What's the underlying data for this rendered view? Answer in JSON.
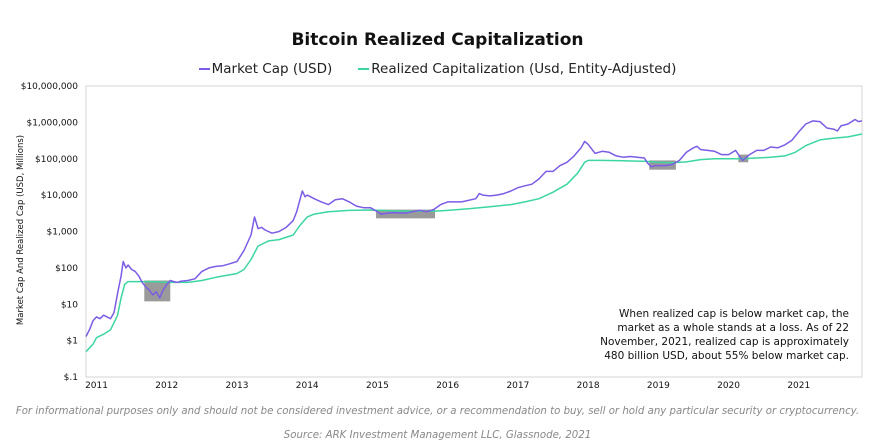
{
  "chart_data": {
    "type": "line",
    "title": "Bitcoin Realized Capitalization",
    "ylabel": "Market Cap And Realized Cap (USD, Millions)",
    "xlabel": "",
    "yscale": "log",
    "ylim": [
      0.1,
      10000000
    ],
    "xlim": [
      2010.85,
      2021.9
    ],
    "y_tick_labels": [
      {
        "value": 0.1,
        "label": "$.1"
      },
      {
        "value": 1,
        "label": "$1"
      },
      {
        "value": 10,
        "label": "$10"
      },
      {
        "value": 100,
        "label": "$100"
      },
      {
        "value": 1000,
        "label": "$1,000"
      },
      {
        "value": 10000,
        "label": "$10,000"
      },
      {
        "value": 100000,
        "label": "$100,000"
      },
      {
        "value": 1000000,
        "label": "$1,000,000"
      },
      {
        "value": 10000000,
        "label": "$10,000,000"
      }
    ],
    "x_tick_labels": [
      {
        "value": 2011.0,
        "label": "2011"
      },
      {
        "value": 2012.0,
        "label": "2012"
      },
      {
        "value": 2013.0,
        "label": "2013"
      },
      {
        "value": 2014.0,
        "label": "2014"
      },
      {
        "value": 2015.0,
        "label": "2015"
      },
      {
        "value": 2016.0,
        "label": "2016"
      },
      {
        "value": 2017.0,
        "label": "2017"
      },
      {
        "value": 2018.0,
        "label": "2018"
      },
      {
        "value": 2019.0,
        "label": "2019"
      },
      {
        "value": 2020.0,
        "label": "2020"
      },
      {
        "value": 2021.0,
        "label": "2021"
      }
    ],
    "series": [
      {
        "name": "Market Cap (USD)",
        "color": "#7b5ce6",
        "points": [
          [
            2010.85,
            1.3
          ],
          [
            2010.9,
            2.0
          ],
          [
            2010.95,
            3.5
          ],
          [
            2011.0,
            4.5
          ],
          [
            2011.05,
            4.0
          ],
          [
            2011.1,
            5.0
          ],
          [
            2011.2,
            4.0
          ],
          [
            2011.25,
            6.0
          ],
          [
            2011.3,
            20
          ],
          [
            2011.35,
            60
          ],
          [
            2011.38,
            150
          ],
          [
            2011.42,
            100
          ],
          [
            2011.45,
            120
          ],
          [
            2011.5,
            90
          ],
          [
            2011.55,
            80
          ],
          [
            2011.6,
            60
          ],
          [
            2011.65,
            40
          ],
          [
            2011.7,
            30
          ],
          [
            2011.75,
            25
          ],
          [
            2011.8,
            18
          ],
          [
            2011.85,
            22
          ],
          [
            2011.9,
            15
          ],
          [
            2011.95,
            25
          ],
          [
            2012.0,
            35
          ],
          [
            2012.05,
            45
          ],
          [
            2012.1,
            42
          ],
          [
            2012.15,
            40
          ],
          [
            2012.2,
            43
          ],
          [
            2012.3,
            45
          ],
          [
            2012.4,
            50
          ],
          [
            2012.5,
            80
          ],
          [
            2012.6,
            100
          ],
          [
            2012.7,
            110
          ],
          [
            2012.8,
            115
          ],
          [
            2012.9,
            130
          ],
          [
            2013.0,
            150
          ],
          [
            2013.1,
            300
          ],
          [
            2013.2,
            800
          ],
          [
            2013.25,
            2500
          ],
          [
            2013.3,
            1200
          ],
          [
            2013.35,
            1300
          ],
          [
            2013.4,
            1100
          ],
          [
            2013.5,
            900
          ],
          [
            2013.6,
            1000
          ],
          [
            2013.7,
            1300
          ],
          [
            2013.8,
            2000
          ],
          [
            2013.85,
            3500
          ],
          [
            2013.9,
            8000
          ],
          [
            2013.93,
            13000
          ],
          [
            2013.97,
            9000
          ],
          [
            2014.0,
            10000
          ],
          [
            2014.1,
            8000
          ],
          [
            2014.2,
            6500
          ],
          [
            2014.3,
            5500
          ],
          [
            2014.4,
            7500
          ],
          [
            2014.5,
            8000
          ],
          [
            2014.6,
            6500
          ],
          [
            2014.7,
            5000
          ],
          [
            2014.8,
            4500
          ],
          [
            2014.9,
            4500
          ],
          [
            2015.0,
            3500
          ],
          [
            2015.05,
            3000
          ],
          [
            2015.2,
            3300
          ],
          [
            2015.4,
            3200
          ],
          [
            2015.5,
            3500
          ],
          [
            2015.6,
            3800
          ],
          [
            2015.7,
            3500
          ],
          [
            2015.8,
            4000
          ],
          [
            2015.9,
            5500
          ],
          [
            2016.0,
            6500
          ],
          [
            2016.2,
            6500
          ],
          [
            2016.4,
            8000
          ],
          [
            2016.45,
            11000
          ],
          [
            2016.5,
            10000
          ],
          [
            2016.6,
            9500
          ],
          [
            2016.7,
            10000
          ],
          [
            2016.8,
            11000
          ],
          [
            2016.9,
            13000
          ],
          [
            2017.0,
            16000
          ],
          [
            2017.1,
            18000
          ],
          [
            2017.2,
            20000
          ],
          [
            2017.3,
            28000
          ],
          [
            2017.4,
            45000
          ],
          [
            2017.5,
            45000
          ],
          [
            2017.6,
            65000
          ],
          [
            2017.7,
            80000
          ],
          [
            2017.8,
            120000
          ],
          [
            2017.9,
            200000
          ],
          [
            2017.95,
            300000
          ],
          [
            2018.0,
            250000
          ],
          [
            2018.1,
            140000
          ],
          [
            2018.2,
            160000
          ],
          [
            2018.3,
            150000
          ],
          [
            2018.4,
            120000
          ],
          [
            2018.5,
            110000
          ],
          [
            2018.6,
            115000
          ],
          [
            2018.7,
            110000
          ],
          [
            2018.8,
            105000
          ],
          [
            2018.85,
            75000
          ],
          [
            2018.9,
            60000
          ],
          [
            2018.95,
            65000
          ],
          [
            2019.0,
            65000
          ],
          [
            2019.1,
            65000
          ],
          [
            2019.2,
            70000
          ],
          [
            2019.3,
            90000
          ],
          [
            2019.4,
            150000
          ],
          [
            2019.5,
            200000
          ],
          [
            2019.55,
            220000
          ],
          [
            2019.6,
            180000
          ],
          [
            2019.7,
            170000
          ],
          [
            2019.8,
            160000
          ],
          [
            2019.9,
            130000
          ],
          [
            2020.0,
            130000
          ],
          [
            2020.1,
            170000
          ],
          [
            2020.2,
            90000
          ],
          [
            2020.3,
            130000
          ],
          [
            2020.4,
            170000
          ],
          [
            2020.5,
            170000
          ],
          [
            2020.6,
            210000
          ],
          [
            2020.7,
            200000
          ],
          [
            2020.8,
            240000
          ],
          [
            2020.9,
            320000
          ],
          [
            2021.0,
            550000
          ],
          [
            2021.1,
            900000
          ],
          [
            2021.2,
            1100000
          ],
          [
            2021.3,
            1050000
          ],
          [
            2021.4,
            700000
          ],
          [
            2021.5,
            650000
          ],
          [
            2021.55,
            580000
          ],
          [
            2021.6,
            800000
          ],
          [
            2021.7,
            900000
          ],
          [
            2021.8,
            1200000
          ],
          [
            2021.85,
            1050000
          ],
          [
            2021.9,
            1100000
          ]
        ]
      },
      {
        "name": "Realized Capitalization (Usd, Entity-Adjusted)",
        "color": "#3cd6a0",
        "points": [
          [
            2010.85,
            0.5
          ],
          [
            2010.95,
            0.8
          ],
          [
            2011.0,
            1.2
          ],
          [
            2011.1,
            1.5
          ],
          [
            2011.2,
            2.0
          ],
          [
            2011.3,
            5.0
          ],
          [
            2011.35,
            15
          ],
          [
            2011.4,
            35
          ],
          [
            2011.45,
            42
          ],
          [
            2011.6,
            42
          ],
          [
            2011.8,
            42
          ],
          [
            2012.0,
            40
          ],
          [
            2012.3,
            40
          ],
          [
            2012.5,
            45
          ],
          [
            2012.7,
            55
          ],
          [
            2012.9,
            65
          ],
          [
            2013.0,
            70
          ],
          [
            2013.1,
            90
          ],
          [
            2013.2,
            170
          ],
          [
            2013.3,
            400
          ],
          [
            2013.45,
            550
          ],
          [
            2013.6,
            600
          ],
          [
            2013.8,
            800
          ],
          [
            2013.9,
            1500
          ],
          [
            2014.0,
            2500
          ],
          [
            2014.1,
            3000
          ],
          [
            2014.3,
            3500
          ],
          [
            2014.6,
            3800
          ],
          [
            2014.9,
            3900
          ],
          [
            2015.2,
            3700
          ],
          [
            2015.5,
            3600
          ],
          [
            2015.8,
            3600
          ],
          [
            2016.0,
            3800
          ],
          [
            2016.3,
            4200
          ],
          [
            2016.6,
            4800
          ],
          [
            2016.9,
            5500
          ],
          [
            2017.1,
            6500
          ],
          [
            2017.3,
            8000
          ],
          [
            2017.5,
            12000
          ],
          [
            2017.7,
            20000
          ],
          [
            2017.85,
            40000
          ],
          [
            2017.95,
            80000
          ],
          [
            2018.0,
            90000
          ],
          [
            2018.2,
            90000
          ],
          [
            2018.5,
            88000
          ],
          [
            2018.8,
            85000
          ],
          [
            2019.0,
            80000
          ],
          [
            2019.2,
            78000
          ],
          [
            2019.4,
            82000
          ],
          [
            2019.6,
            95000
          ],
          [
            2019.8,
            100000
          ],
          [
            2020.0,
            100000
          ],
          [
            2020.2,
            100000
          ],
          [
            2020.4,
            105000
          ],
          [
            2020.6,
            110000
          ],
          [
            2020.8,
            120000
          ],
          [
            2020.95,
            150000
          ],
          [
            2021.1,
            230000
          ],
          [
            2021.3,
            330000
          ],
          [
            2021.5,
            370000
          ],
          [
            2021.7,
            400000
          ],
          [
            2021.9,
            480000
          ]
        ]
      }
    ],
    "shaded_regions": [
      {
        "x_start": 2011.68,
        "x_end": 2012.05,
        "y_low": 12,
        "y_high": 45
      },
      {
        "x_start": 2014.98,
        "x_end": 2015.82,
        "y_low": 2300,
        "y_high": 4000
      },
      {
        "x_start": 2018.87,
        "x_end": 2019.25,
        "y_low": 50000,
        "y_high": 90000
      },
      {
        "x_start": 2020.14,
        "x_end": 2020.28,
        "y_low": 80000,
        "y_high": 130000
      }
    ],
    "shade_color": "#8f8f8f",
    "annotation": [
      "When realized cap is below market cap, the",
      "market as a whole stands at a loss. As of 22",
      "November, 2021, realized cap is approximately",
      "480 billion USD, about 55% below market cap."
    ]
  },
  "legend": {
    "market_cap": "Market Cap (USD)",
    "realized_cap": "Realized Capitalization (Usd, Entity-Adjusted)"
  },
  "footer": {
    "disclaimer": "For informational purposes only and should not be considered investment advice, or a recommendation to buy, sell or hold any particular security or cryptocurrency.",
    "source": "Source: ARK Investment Management LLC, Glassnode, 2021"
  }
}
